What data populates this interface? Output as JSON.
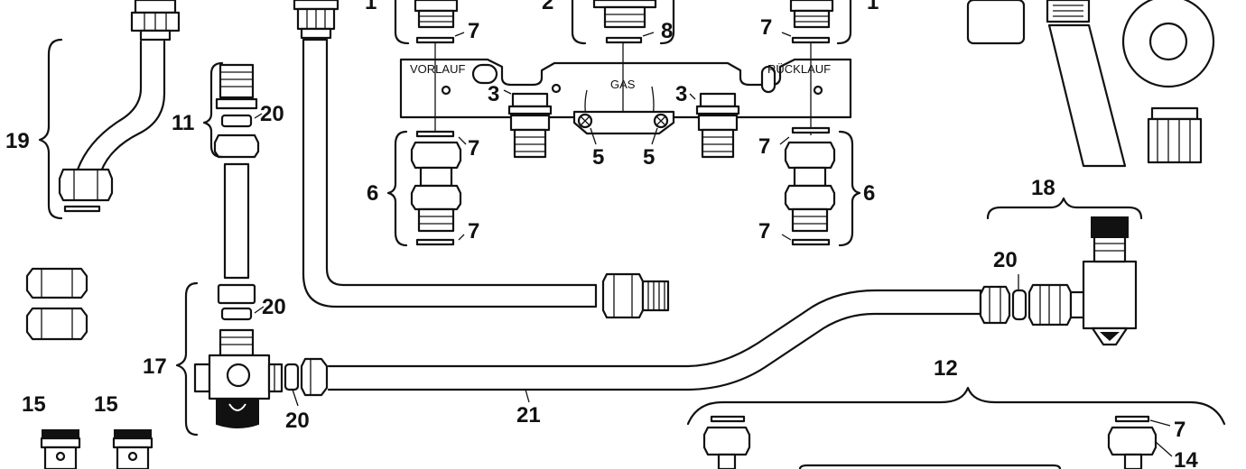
{
  "diagram": {
    "plate_labels": {
      "vorlauf": "VORLAUF",
      "gas": "GAS",
      "ruecklauf": "RÜCKLAUF"
    },
    "callouts": {
      "n1a": "1",
      "n2": "2",
      "n1b": "1",
      "n7a": "7",
      "n8": "8",
      "n7b": "7",
      "n3a": "3",
      "n3b": "3",
      "n7c": "7",
      "n5a": "5",
      "n5b": "5",
      "n7d": "7",
      "n6a": "6",
      "n6b": "6",
      "n7e": "7",
      "n7f": "7",
      "n19": "19",
      "n11": "11",
      "n20a": "20",
      "n18": "18",
      "n20b": "20",
      "n20c": "20",
      "n17": "17",
      "n20d": "20",
      "n21": "21",
      "n12": "12",
      "n15a": "15",
      "n15b": "15",
      "n7g": "7",
      "n14": "14"
    }
  }
}
